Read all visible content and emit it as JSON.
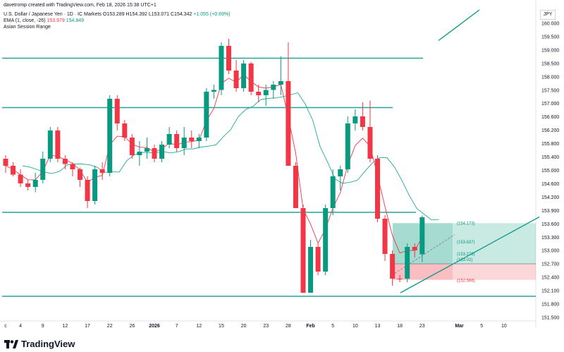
{
  "header": {
    "created_by": "davetromp created with TradingView.com, Feb 18, 2026 15:38 UTC+1",
    "symbol": "U.S. Dollar / Japanese Yen · 1D · IC Markets",
    "ohlc": "O153.289 H154.392 L153.071 C154.342",
    "change": "+1.055 (+0.69%)",
    "ema_label": "EMA (1, close, -26)",
    "ema_val_1": "153.979",
    "ema_val_2": "154.849",
    "session": "Asian Session Range"
  },
  "currency": "JPY",
  "logo_text": "TradingView",
  "colors": {
    "up": "#089981",
    "down": "#f23645",
    "level": "#26a69a",
    "ema_fast": "#f23645",
    "ema_slow": "#22ab94",
    "trend": "#089981"
  },
  "chart_data": {
    "type": "candlestick",
    "ylim": [
      151.5,
      160.3
    ],
    "y_ticks": [
      "160.000",
      "159.500",
      "159.000",
      "158.500",
      "158.000",
      "157.500",
      "157.000",
      "156.600",
      "156.200",
      "155.800",
      "155.400",
      "155.000",
      "154.600",
      "154.200",
      "153.900",
      "153.600",
      "153.300",
      "153.000",
      "152.700",
      "152.400",
      "152.100",
      "151.800",
      "151.500"
    ],
    "x_ticks": [
      {
        "label": "c",
        "i": 0
      },
      {
        "label": "4",
        "i": 2
      },
      {
        "label": "9",
        "i": 5
      },
      {
        "label": "12",
        "i": 8
      },
      {
        "label": "17",
        "i": 11
      },
      {
        "label": "22",
        "i": 14
      },
      {
        "label": "26",
        "i": 17
      },
      {
        "label": "2026",
        "i": 20
      },
      {
        "label": "7",
        "i": 23
      },
      {
        "label": "12",
        "i": 26
      },
      {
        "label": "15",
        "i": 29
      },
      {
        "label": "20",
        "i": 32
      },
      {
        "label": "23",
        "i": 35
      },
      {
        "label": "28",
        "i": 38
      },
      {
        "label": "Feb",
        "i": 41
      },
      {
        "label": "5",
        "i": 44
      },
      {
        "label": "10",
        "i": 47
      },
      {
        "label": "13",
        "i": 50
      },
      {
        "label": "18",
        "i": 53
      },
      {
        "label": "23",
        "i": 56
      },
      {
        "label": "Mar",
        "i": 61
      },
      {
        "label": "5",
        "i": 64
      },
      {
        "label": "10",
        "i": 67
      }
    ],
    "candles": [
      [
        156.0,
        156.1,
        155.6,
        155.8
      ],
      [
        155.8,
        155.9,
        155.5,
        155.55
      ],
      [
        155.55,
        155.7,
        155.2,
        155.3
      ],
      [
        155.3,
        155.4,
        155.1,
        155.2
      ],
      [
        155.2,
        155.6,
        155.05,
        155.4
      ],
      [
        155.4,
        156.2,
        155.3,
        156.0
      ],
      [
        156.0,
        156.9,
        155.9,
        156.8
      ],
      [
        156.8,
        156.9,
        155.9,
        156.0
      ],
      [
        156.0,
        156.1,
        155.7,
        155.85
      ],
      [
        155.85,
        155.9,
        155.5,
        155.7
      ],
      [
        155.7,
        155.75,
        155.2,
        155.4
      ],
      [
        155.4,
        155.5,
        154.6,
        154.8
      ],
      [
        154.8,
        155.8,
        154.7,
        155.7
      ],
      [
        155.7,
        155.9,
        155.4,
        155.6
      ],
      [
        155.6,
        157.8,
        155.5,
        157.7
      ],
      [
        157.7,
        157.8,
        156.8,
        157.0
      ],
      [
        157.0,
        157.1,
        156.5,
        156.6
      ],
      [
        156.6,
        156.7,
        156.0,
        156.1
      ],
      [
        156.1,
        156.5,
        155.8,
        156.2
      ],
      [
        156.2,
        156.6,
        156.0,
        156.3
      ],
      [
        156.3,
        156.4,
        155.9,
        156.0
      ],
      [
        156.0,
        156.5,
        155.9,
        156.4
      ],
      [
        156.4,
        156.9,
        156.3,
        156.7
      ],
      [
        156.7,
        156.8,
        156.2,
        156.3
      ],
      [
        156.3,
        156.9,
        156.1,
        156.6
      ],
      [
        156.6,
        156.8,
        156.3,
        156.5
      ],
      [
        156.5,
        156.7,
        156.3,
        156.6
      ],
      [
        156.6,
        158.0,
        156.5,
        157.9
      ],
      [
        157.9,
        158.1,
        157.7,
        157.95
      ],
      [
        157.95,
        159.3,
        157.8,
        159.2
      ],
      [
        159.2,
        159.4,
        158.4,
        158.5
      ],
      [
        158.5,
        158.8,
        157.9,
        158.0
      ],
      [
        158.0,
        158.8,
        157.9,
        158.7
      ],
      [
        158.7,
        158.75,
        157.8,
        157.9
      ],
      [
        157.9,
        158.1,
        157.6,
        157.8
      ],
      [
        157.8,
        158.1,
        157.5,
        157.95
      ],
      [
        157.95,
        158.2,
        157.7,
        158.1
      ],
      [
        158.1,
        158.9,
        157.8,
        158.2
      ],
      [
        158.2,
        159.3,
        155.8,
        155.8
      ],
      [
        155.8,
        155.9,
        154.6,
        154.6
      ],
      [
        154.6,
        154.7,
        152.2,
        152.2
      ],
      [
        152.2,
        153.7,
        152.2,
        153.5
      ],
      [
        153.5,
        153.6,
        152.7,
        152.8
      ],
      [
        152.8,
        154.7,
        152.7,
        154.6
      ],
      [
        154.6,
        155.7,
        154.4,
        155.5
      ],
      [
        155.5,
        155.8,
        155.1,
        155.7
      ],
      [
        155.7,
        157.2,
        155.6,
        157.0
      ],
      [
        157.0,
        157.4,
        156.8,
        157.2
      ],
      [
        157.2,
        157.6,
        156.8,
        156.9
      ],
      [
        156.9,
        157.65,
        155.9,
        156.0
      ],
      [
        156.0,
        156.1,
        154.2,
        154.3
      ],
      [
        154.3,
        154.4,
        153.1,
        153.3
      ],
      [
        153.3,
        153.4,
        152.4,
        152.6
      ],
      [
        152.6,
        152.7,
        152.5,
        152.58
      ],
      [
        152.6,
        153.6,
        152.5,
        153.5
      ],
      [
        153.5,
        153.6,
        153.2,
        153.4
      ],
      [
        153.29,
        154.39,
        153.07,
        154.34
      ]
    ],
    "levels": [
      158.85,
      157.45,
      154.48,
      152.1
    ],
    "position": {
      "entry": 153.02,
      "target": 154.173,
      "stop": 152.566,
      "mid_label": 153.637,
      "mid_label_2": 153.278,
      "labels": [
        "(154.173)",
        "(153.637)",
        "(153.278)",
        "(153.02)",
        "(152.566)"
      ]
    }
  }
}
